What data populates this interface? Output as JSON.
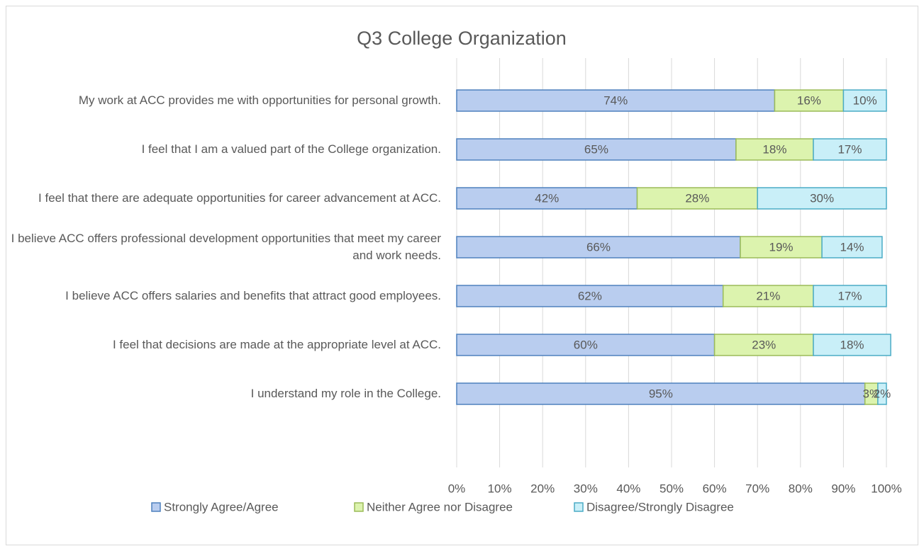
{
  "chart_data": {
    "type": "stacked_barh",
    "title": "Q3 College Organization",
    "categories": [
      "My work at ACC provides me with opportunities for personal growth.",
      "I feel that I am a valued part of the College organization.",
      "I feel that there are adequate opportunities for career advancement at ACC.",
      "I believe ACC offers professional development opportunities that meet my career and work needs.",
      "I believe ACC offers salaries and benefits that attract good employees.",
      "I feel that decisions are made at the appropriate level at ACC.",
      "I understand my role in the College."
    ],
    "series": [
      {
        "name": "Strongly Agree/Agree",
        "color": "#b9cdef",
        "edge": "#4f81bd",
        "values": [
          74,
          65,
          42,
          66,
          62,
          60,
          95
        ],
        "value_labels": [
          "74%",
          "65%",
          "42%",
          "66%",
          "62%",
          "60%",
          "95%"
        ]
      },
      {
        "name": "Neither Agree nor Disagree",
        "color": "#dcf3ae",
        "edge": "#9bbb59",
        "values": [
          16,
          18,
          28,
          19,
          21,
          23,
          3
        ],
        "value_labels": [
          "16%",
          "18%",
          "28%",
          "19%",
          "21%",
          "23%",
          "3%"
        ]
      },
      {
        "name": "Disagree/Strongly Disagree",
        "color": "#c9eff8",
        "edge": "#4bacc6",
        "values": [
          10,
          17,
          30,
          14,
          17,
          18,
          2
        ],
        "value_labels": [
          "10%",
          "17%",
          "30%",
          "14%",
          "17%",
          "18%",
          "2%"
        ]
      }
    ],
    "xlim": [
      0,
      100
    ],
    "xticks": [
      {
        "value": 0,
        "label": "0%"
      },
      {
        "value": 10,
        "label": "10%"
      },
      {
        "value": 20,
        "label": "20%"
      },
      {
        "value": 30,
        "label": "30%"
      },
      {
        "value": 40,
        "label": "40%"
      },
      {
        "value": 50,
        "label": "50%"
      },
      {
        "value": 60,
        "label": "60%"
      },
      {
        "value": 70,
        "label": "70%"
      },
      {
        "value": 80,
        "label": "80%"
      },
      {
        "value": 90,
        "label": "90%"
      },
      {
        "value": 100,
        "label": "100%"
      }
    ],
    "grid": true,
    "legend": "bottom"
  }
}
